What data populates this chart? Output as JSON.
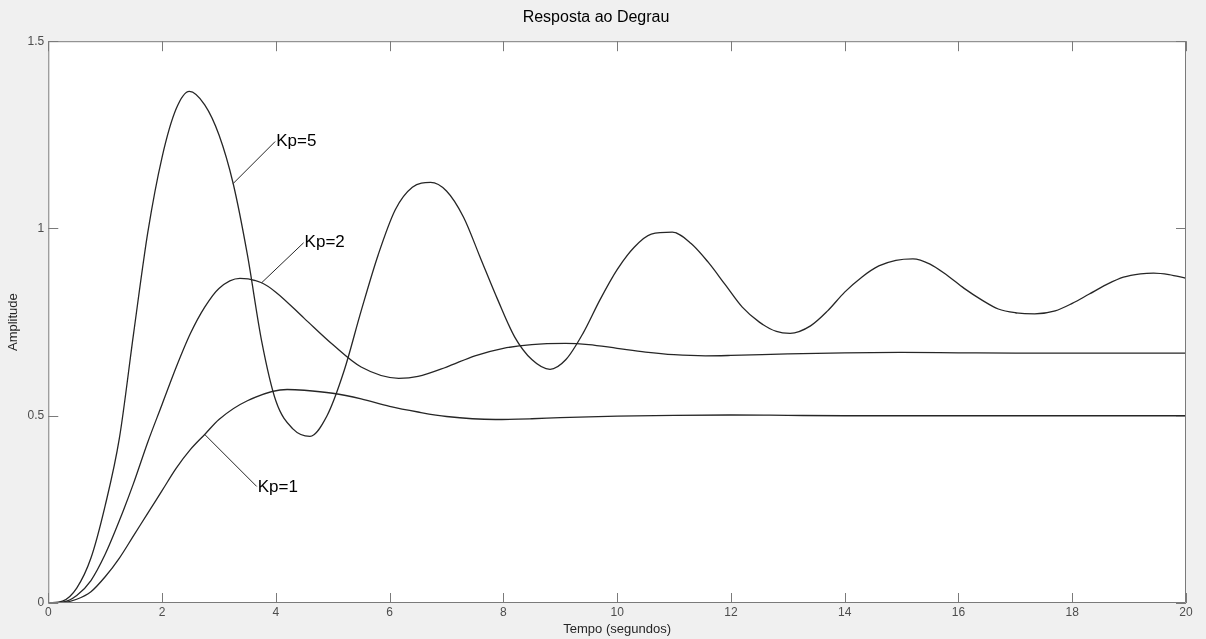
{
  "chart_data": {
    "type": "line",
    "title": "Resposta ao Degrau",
    "xlabel": "Tempo (segundos)",
    "ylabel": "Amplitude",
    "xlim": [
      0,
      20
    ],
    "xticks": [
      0,
      2,
      4,
      6,
      8,
      10,
      12,
      14,
      16,
      18,
      20
    ],
    "ylim": [
      0,
      1.5
    ],
    "yticks": [
      0,
      0.5,
      1,
      1.5
    ],
    "grid": false,
    "legend": false,
    "marker": "none",
    "line_style": "solid",
    "series": [
      {
        "color": "#262626",
        "x": [
          0,
          0.25,
          0.5,
          0.75,
          1,
          1.25,
          1.5,
          1.75,
          2,
          2.25,
          2.48,
          2.75,
          3,
          3.25,
          3.5,
          3.75,
          4,
          4.3,
          4.6,
          4.9,
          5.2,
          5.5,
          5.8,
          6.1,
          6.4,
          6.72,
          7,
          7.3,
          7.6,
          7.9,
          8.2,
          8.5,
          8.82,
          9.1,
          9.4,
          9.7,
          10,
          10.3,
          10.6,
          10.97,
          11.3,
          11.6,
          11.9,
          12.2,
          12.5,
          12.8,
          13.04,
          13.4,
          13.7,
          14,
          14.3,
          14.6,
          14.9,
          15.2,
          15.5,
          15.8,
          16.1,
          16.4,
          16.7,
          17,
          17.34,
          17.7,
          18,
          18.3,
          18.6,
          18.9,
          19.2,
          19.43,
          19.7,
          20
        ],
        "values": [
          0,
          0.005,
          0.04,
          0.12,
          0.26,
          0.44,
          0.72,
          0.99,
          1.19,
          1.32,
          1.366,
          1.33,
          1.25,
          1.12,
          0.93,
          0.7,
          0.54,
          0.465,
          0.445,
          0.5,
          0.62,
          0.78,
          0.93,
          1.05,
          1.11,
          1.123,
          1.1,
          1.03,
          0.92,
          0.81,
          0.71,
          0.65,
          0.624,
          0.65,
          0.72,
          0.81,
          0.89,
          0.95,
          0.985,
          0.99,
          0.96,
          0.91,
          0.85,
          0.79,
          0.75,
          0.725,
          0.72,
          0.74,
          0.78,
          0.83,
          0.87,
          0.9,
          0.915,
          0.919,
          0.905,
          0.875,
          0.84,
          0.81,
          0.785,
          0.775,
          0.772,
          0.78,
          0.8,
          0.825,
          0.85,
          0.87,
          0.879,
          0.881,
          0.877,
          0.867
        ]
      },
      {
        "color": "#262626",
        "x": [
          0,
          0.25,
          0.5,
          0.75,
          1,
          1.25,
          1.5,
          1.75,
          2,
          2.25,
          2.5,
          2.75,
          3,
          3.37,
          3.75,
          4,
          4.5,
          5,
          5.5,
          6.16,
          6.5,
          7,
          7.5,
          8,
          8.5,
          9.09,
          9.5,
          10,
          10.5,
          11,
          11.55,
          12,
          13,
          14,
          15,
          16,
          17,
          18,
          19,
          20
        ],
        "values": [
          0,
          0.002,
          0.02,
          0.06,
          0.13,
          0.22,
          0.32,
          0.43,
          0.53,
          0.63,
          0.72,
          0.79,
          0.84,
          0.867,
          0.855,
          0.83,
          0.76,
          0.69,
          0.63,
          0.6,
          0.605,
          0.63,
          0.66,
          0.68,
          0.69,
          0.693,
          0.69,
          0.68,
          0.67,
          0.663,
          0.66,
          0.661,
          0.665,
          0.668,
          0.669,
          0.668,
          0.667,
          0.667,
          0.667,
          0.667
        ]
      },
      {
        "color": "#262626",
        "x": [
          0,
          0.25,
          0.5,
          0.75,
          1,
          1.25,
          1.5,
          1.75,
          2,
          2.25,
          2.5,
          2.75,
          3,
          3.5,
          4.2,
          4.5,
          5,
          5.5,
          6,
          6.5,
          7,
          7.86,
          8.5,
          9,
          10,
          11,
          12,
          13,
          14,
          16,
          18,
          20
        ],
        "values": [
          0,
          0.001,
          0.01,
          0.03,
          0.07,
          0.12,
          0.18,
          0.24,
          0.3,
          0.36,
          0.41,
          0.45,
          0.49,
          0.54,
          0.57,
          0.568,
          0.56,
          0.545,
          0.525,
          0.51,
          0.498,
          0.49,
          0.492,
          0.495,
          0.499,
          0.501,
          0.502,
          0.501,
          0.5,
          0.5,
          0.5,
          0.5
        ]
      }
    ],
    "annotations": [
      {
        "text": "Kp=5",
        "x": 3.25,
        "y": 1.12
      },
      {
        "text": "Kp=2",
        "x": 3.75,
        "y": 0.855
      },
      {
        "text": "Kp=1",
        "x": 2.75,
        "y": 0.45
      }
    ]
  }
}
